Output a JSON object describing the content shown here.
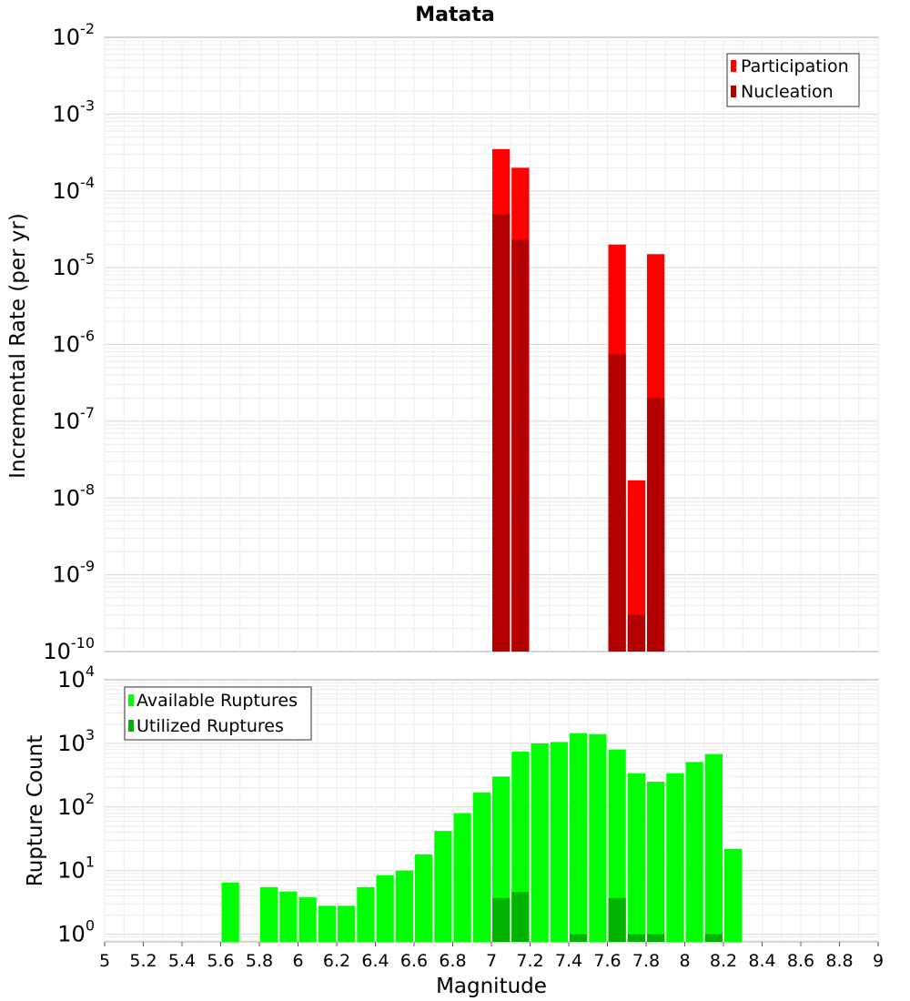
{
  "chart_data": [
    {
      "type": "bar",
      "title": "Matata",
      "xlabel": "",
      "ylabel": "Incremental Rate (per yr)",
      "yscale": "log",
      "ylim_exp": [
        -10,
        -2
      ],
      "y_tick_exponents": [
        "-2",
        "-3",
        "-4",
        "-5",
        "-6",
        "-7",
        "-8",
        "-9",
        "-10"
      ],
      "xlim": [
        5,
        9
      ],
      "bin_width": 0.1,
      "grid": true,
      "legend_position": "top-right",
      "colors": {
        "Participation": "#ff0000",
        "Nucleation": "#b30000"
      },
      "series": [
        {
          "name": "Participation",
          "x": [
            7.05,
            7.15,
            7.65,
            7.75,
            7.85
          ],
          "values": [
            0.00035,
            0.0002,
            2e-05,
            1.7e-08,
            1.5e-05
          ]
        },
        {
          "name": "Nucleation",
          "x": [
            7.05,
            7.15,
            7.65,
            7.75,
            7.85
          ],
          "values": [
            5e-05,
            2.3e-05,
            7.5e-07,
            3e-10,
            2e-07
          ]
        }
      ]
    },
    {
      "type": "bar",
      "title": "",
      "xlabel": "Magnitude",
      "ylabel": "Rupture Count",
      "yscale": "log",
      "ylim_exp": [
        -0.12,
        4
      ],
      "y_tick_exponents": [
        "4",
        "3",
        "2",
        "1",
        "0"
      ],
      "xlim": [
        5,
        9
      ],
      "x_ticks": [
        "5",
        "5.2",
        "5.4",
        "5.6",
        "5.8",
        "6",
        "6.2",
        "6.4",
        "6.6",
        "6.8",
        "7",
        "7.2",
        "7.4",
        "7.6",
        "7.8",
        "8",
        "8.2",
        "8.4",
        "8.6",
        "8.8",
        "9"
      ],
      "bin_width": 0.1,
      "grid": true,
      "legend_position": "top-left",
      "colors": {
        "Available Ruptures": "#00ff00",
        "Utilized Ruptures": "#00b300"
      },
      "series": [
        {
          "name": "Available Ruptures",
          "x": [
            5.65,
            5.85,
            5.95,
            6.05,
            6.15,
            6.25,
            6.35,
            6.45,
            6.55,
            6.65,
            6.75,
            6.85,
            6.95,
            7.05,
            7.15,
            7.25,
            7.35,
            7.45,
            7.55,
            7.65,
            7.75,
            7.85,
            7.95,
            8.05,
            8.15,
            8.25
          ],
          "values": [
            6.5,
            5.5,
            4.7,
            3.8,
            2.8,
            2.8,
            5.5,
            8.5,
            10,
            18,
            42,
            80,
            170,
            300,
            740,
            1000,
            1050,
            1450,
            1400,
            800,
            340,
            250,
            340,
            510,
            680,
            22
          ]
        },
        {
          "name": "Utilized Ruptures",
          "x": [
            7.05,
            7.15,
            7.45,
            7.65,
            7.75,
            7.85,
            8.15
          ],
          "values": [
            3.7,
            4.6,
            1,
            3.7,
            1,
            1,
            1
          ]
        }
      ]
    }
  ]
}
